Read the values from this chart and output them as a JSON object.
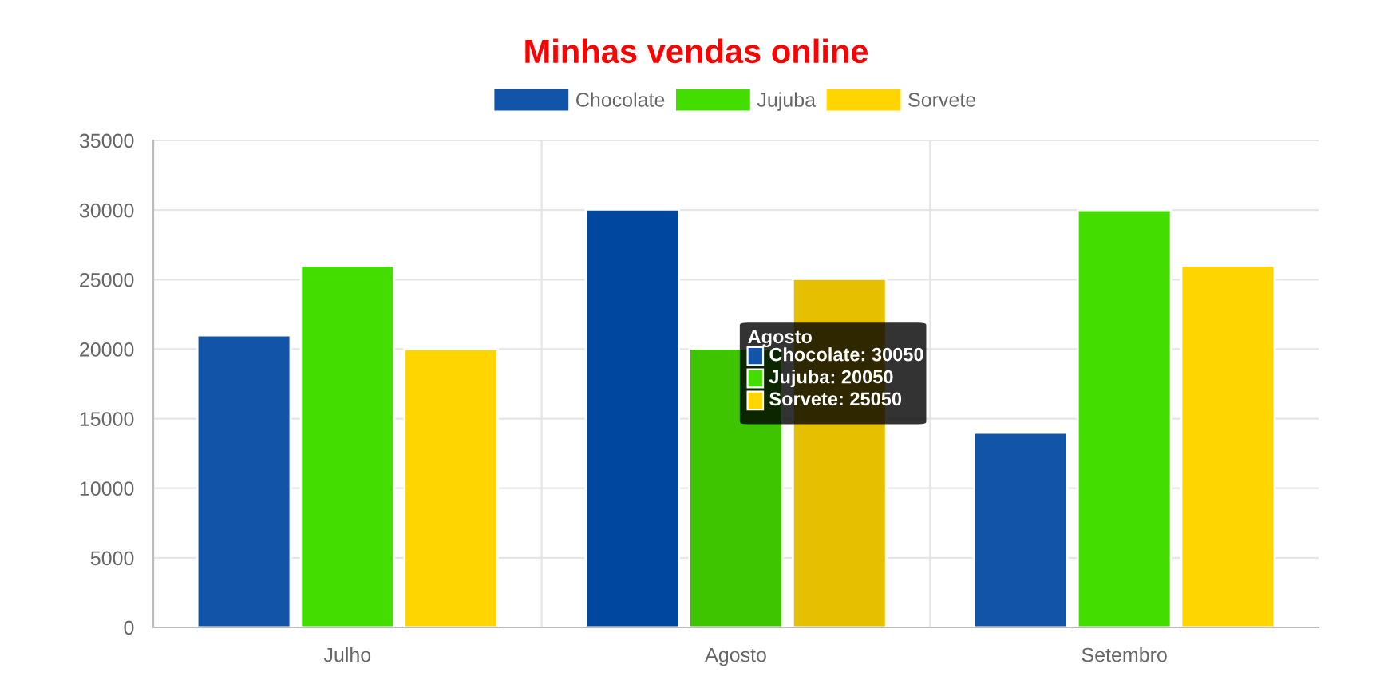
{
  "chart_data": {
    "type": "bar",
    "title": "Minhas vendas online",
    "categories": [
      "Julho",
      "Agosto",
      "Setembro"
    ],
    "series": [
      {
        "name": "Chocolate",
        "color": "#1254a8",
        "colors": [
          "#1254a8",
          "#0047a0",
          "#1254a8"
        ],
        "values": [
          21000,
          30050,
          14000
        ]
      },
      {
        "name": "Jujuba",
        "color": "#44dd00",
        "colors": [
          "#44dd00",
          "#3fc400",
          "#44dd00"
        ],
        "values": [
          26000,
          20050,
          30000
        ]
      },
      {
        "name": "Sorvete",
        "color": "#ffd500",
        "colors": [
          "#ffd500",
          "#e6c000",
          "#ffd500"
        ],
        "values": [
          20000,
          25050,
          26000
        ]
      }
    ],
    "ylim": [
      0,
      35000
    ],
    "yticks": [
      0,
      5000,
      10000,
      15000,
      20000,
      25000,
      30000,
      35000
    ],
    "grid": true,
    "legend": "top",
    "annotations": [
      "Agosto",
      "Chocolate: 30050",
      "Jujuba: 20050",
      "Sorvete: 25050"
    ]
  }
}
